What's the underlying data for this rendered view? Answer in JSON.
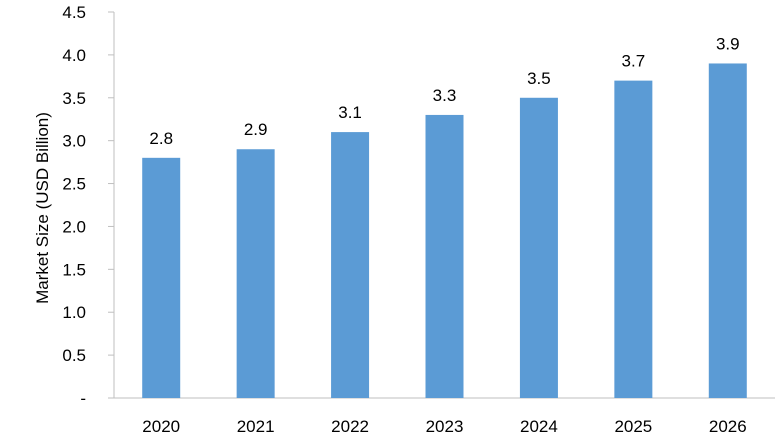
{
  "chart_data": {
    "type": "bar",
    "title": "",
    "xlabel": "",
    "ylabel": "Market Size (USD Billion)",
    "categories": [
      "2020",
      "2021",
      "2022",
      "2023",
      "2024",
      "2025",
      "2026"
    ],
    "series": [
      {
        "values": [
          2.8,
          2.9,
          3.1,
          3.3,
          3.5,
          3.7,
          3.9
        ],
        "data_labels": [
          "2.8",
          "2.9",
          "3.1",
          "3.3",
          "3.5",
          "3.7",
          "3.9"
        ],
        "color": "#5b9bd5"
      }
    ],
    "ylim": [
      0,
      4.5
    ],
    "yticks": [
      0,
      0.5,
      1.0,
      1.5,
      2.0,
      2.5,
      3.0,
      3.5,
      4.0,
      4.5
    ],
    "ytick_labels": [
      "-",
      "0.5",
      "1.0",
      "1.5",
      "2.0",
      "2.5",
      "3.0",
      "3.5",
      "4.0",
      "4.5"
    ],
    "grid": false,
    "legend": "none"
  }
}
